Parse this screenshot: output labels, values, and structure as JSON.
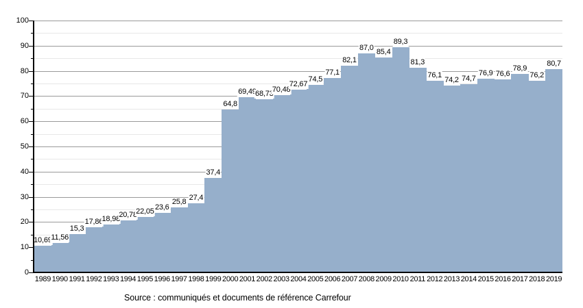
{
  "chart_data": {
    "type": "bar",
    "title": "",
    "xlabel": "",
    "ylabel": "",
    "categories": [
      "1989",
      "1990",
      "1991",
      "1992",
      "1993",
      "1994",
      "1995",
      "1996",
      "1997",
      "1998",
      "1999",
      "2000",
      "2001",
      "2002",
      "2003",
      "2004",
      "2005",
      "2006",
      "2007",
      "2008",
      "2009",
      "2010",
      "2011",
      "2012",
      "2013",
      "2014",
      "2015",
      "2016",
      "2017",
      "2018",
      "2019"
    ],
    "values": [
      10.69,
      11.56,
      15.3,
      17.86,
      18.98,
      20.78,
      22.05,
      23.6,
      25.8,
      27.4,
      37.4,
      64.8,
      69.49,
      68.73,
      70.48,
      72.67,
      74.5,
      77.1,
      82.1,
      87.0,
      85.4,
      89.3,
      81.3,
      76.1,
      74.2,
      74.7,
      76.9,
      76.6,
      78.9,
      76.2,
      80.7
    ],
    "value_labels": [
      "10,69",
      "11,56",
      "15,3",
      "17,86",
      "18,98",
      "20,78",
      "22,05",
      "23,6",
      "25,8",
      "27,4",
      "37,4",
      "64,8",
      "69,49",
      "68,73",
      "70,48",
      "72,67",
      "74,5",
      "77,1",
      "82,1",
      "87,0",
      "85,4",
      "89,3",
      "81,3",
      "76,1",
      "74,2",
      "74,7",
      "76,9",
      "76,6",
      "78,9",
      "76,2",
      "80,7"
    ],
    "ylim": [
      0,
      100
    ],
    "y_major_step": 10,
    "y_minor_step": 5,
    "y_tick_labels": [
      "0",
      "10",
      "20",
      "30",
      "40",
      "50",
      "60",
      "70",
      "80",
      "90",
      "100"
    ],
    "grid": true,
    "legend": "none",
    "bar_color": "#96AFCB",
    "major_grid_color": "#999999",
    "minor_grid_color": "#e7e7e7",
    "axis_color": "#000000"
  },
  "footer": {
    "source": "Source : communiqués et documents de référence Carrefour"
  }
}
